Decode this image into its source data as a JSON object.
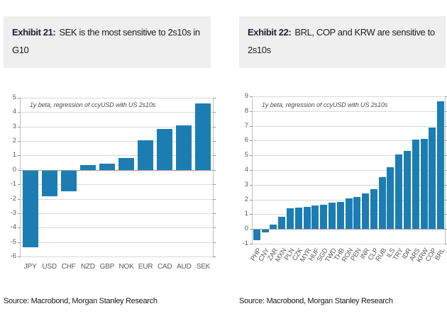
{
  "panels": [
    {
      "exhibit_label": "Exhibit 21:",
      "title_rest": "SEK is the most sensitive to 2s10s in G10",
      "source": "Source: Macrobond, Morgan Stanley Research"
    },
    {
      "exhibit_label": "Exhibit 22:",
      "title_rest": "BRL, COP and KRW are sensitive to 2s10s",
      "source": "Source: Macrobond, Morgan Stanley Research"
    }
  ],
  "colors": {
    "bar": "#1c7db2",
    "title_background": "#efefef",
    "gridline": "#d8d8d8",
    "zero_line": "#9b9b9b",
    "axis_text": "#595959"
  },
  "chart_data": [
    {
      "type": "bar",
      "title": "Exhibit 21: SEK is the most sensitive to 2s10s in G10",
      "annotation": "1y beta, regression of ccyUSD with US 2s10s",
      "categories": [
        "JPY",
        "USD",
        "CHF",
        "NZD",
        "GBP",
        "NOK",
        "EUR",
        "CAD",
        "AUD",
        "SEK"
      ],
      "values": [
        -5.3,
        -1.8,
        -1.45,
        0.35,
        0.45,
        0.85,
        2.05,
        2.85,
        3.1,
        4.6
      ],
      "xlabel": "",
      "ylabel": "",
      "ylim": [
        -6,
        5
      ],
      "yticks": [
        5,
        4,
        3,
        2,
        1,
        0,
        -1,
        -2,
        -3,
        -4,
        -5,
        -6
      ],
      "grid": true,
      "legend_position": "none",
      "bar_color": "#1c7db2"
    },
    {
      "type": "bar",
      "title": "Exhibit 22: BRL, COP and KRW are sensitive to 2s10s",
      "annotation": "1y beta, regression of ccyUSD with US 2s10s",
      "categories": [
        "PHP",
        "CNY",
        "ZAR",
        "MXN",
        "PLN",
        "CZK",
        "MYR",
        "HUF",
        "SGD",
        "TWD",
        "THB",
        "RON",
        "PEN",
        "INR",
        "CLP",
        "RUB",
        "ILS",
        "TRY",
        "IDR",
        "ARS",
        "KRW",
        "COP",
        "BRL"
      ],
      "values": [
        -0.7,
        -0.2,
        0.3,
        0.85,
        1.4,
        1.45,
        1.5,
        1.6,
        1.65,
        1.8,
        1.85,
        2.1,
        2.15,
        2.4,
        2.7,
        3.5,
        4.2,
        5.05,
        5.3,
        6.05,
        6.1,
        6.9,
        8.65
      ],
      "xlabel": "",
      "ylabel": "",
      "ylim": [
        -1,
        9
      ],
      "yticks": [
        9,
        8,
        7,
        6,
        5,
        4,
        3,
        2,
        1,
        0,
        -1
      ],
      "grid": true,
      "legend_position": "none",
      "bar_color": "#1c7db2"
    }
  ]
}
